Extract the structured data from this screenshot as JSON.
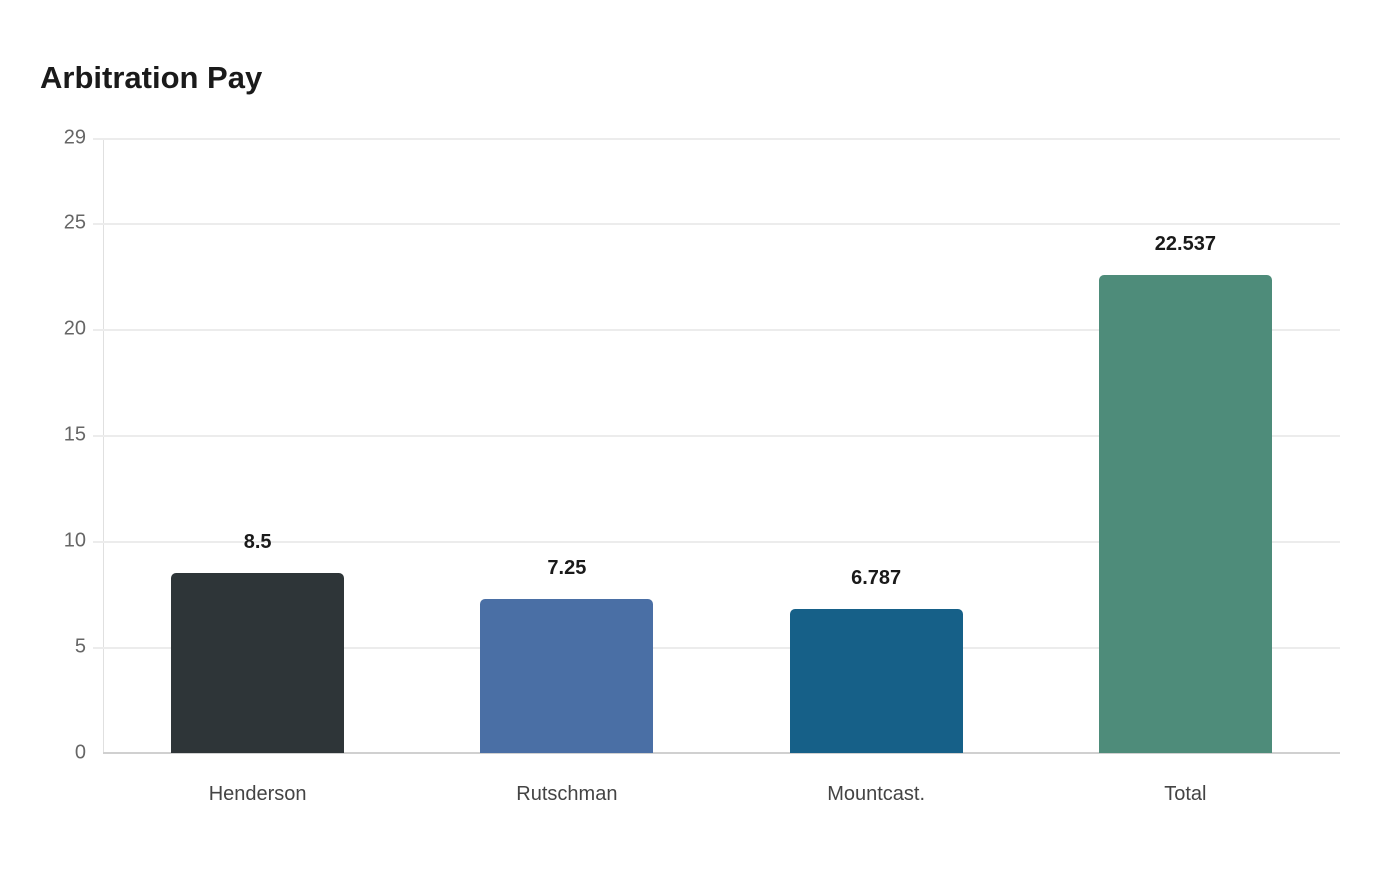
{
  "chart_data": {
    "type": "bar",
    "title": "Arbitration Pay",
    "categories": [
      "Henderson",
      "Rutschman",
      "Mountcast.",
      "Total"
    ],
    "values": [
      8.5,
      7.25,
      6.787,
      22.537
    ],
    "value_labels": [
      "8.5",
      "7.25",
      "6.787",
      "22.537"
    ],
    "colors": [
      "#2e3538",
      "#4a6fa5",
      "#166088",
      "#4e8c7a"
    ],
    "xlabel": "",
    "ylabel": "",
    "ylim": [
      0,
      29
    ],
    "yticks": [
      0,
      5,
      10,
      15,
      20,
      25,
      29
    ],
    "grid": true,
    "legend": "none"
  }
}
